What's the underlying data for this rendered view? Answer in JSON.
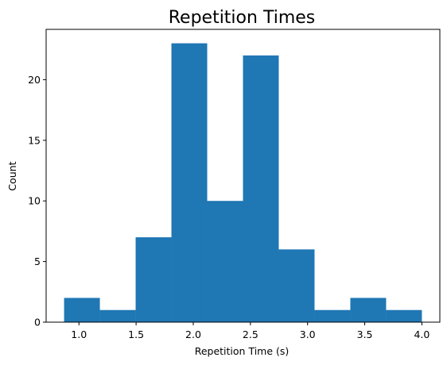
{
  "chart_data": {
    "type": "bar",
    "title": "Repetition Times",
    "xlabel": "Repetition Time (s)",
    "ylabel": "Count",
    "bin_edges": [
      0.87,
      1.183,
      1.496,
      1.809,
      2.122,
      2.435,
      2.748,
      3.061,
      3.374,
      3.687,
      4.0
    ],
    "values": [
      2,
      1,
      7,
      23,
      10,
      22,
      6,
      1,
      2,
      1
    ],
    "xlim": [
      0.713,
      4.157
    ],
    "ylim": [
      0,
      24.15
    ],
    "x_ticks": [
      1.0,
      1.5,
      2.0,
      2.5,
      3.0,
      3.5,
      4.0
    ],
    "x_tick_labels": [
      "1.0",
      "1.5",
      "2.0",
      "2.5",
      "3.0",
      "3.5",
      "4.0"
    ],
    "y_ticks": [
      0,
      5,
      10,
      15,
      20
    ],
    "y_tick_labels": [
      "0",
      "5",
      "10",
      "15",
      "20"
    ],
    "grid": false,
    "bar_color": "#1f77b4"
  }
}
